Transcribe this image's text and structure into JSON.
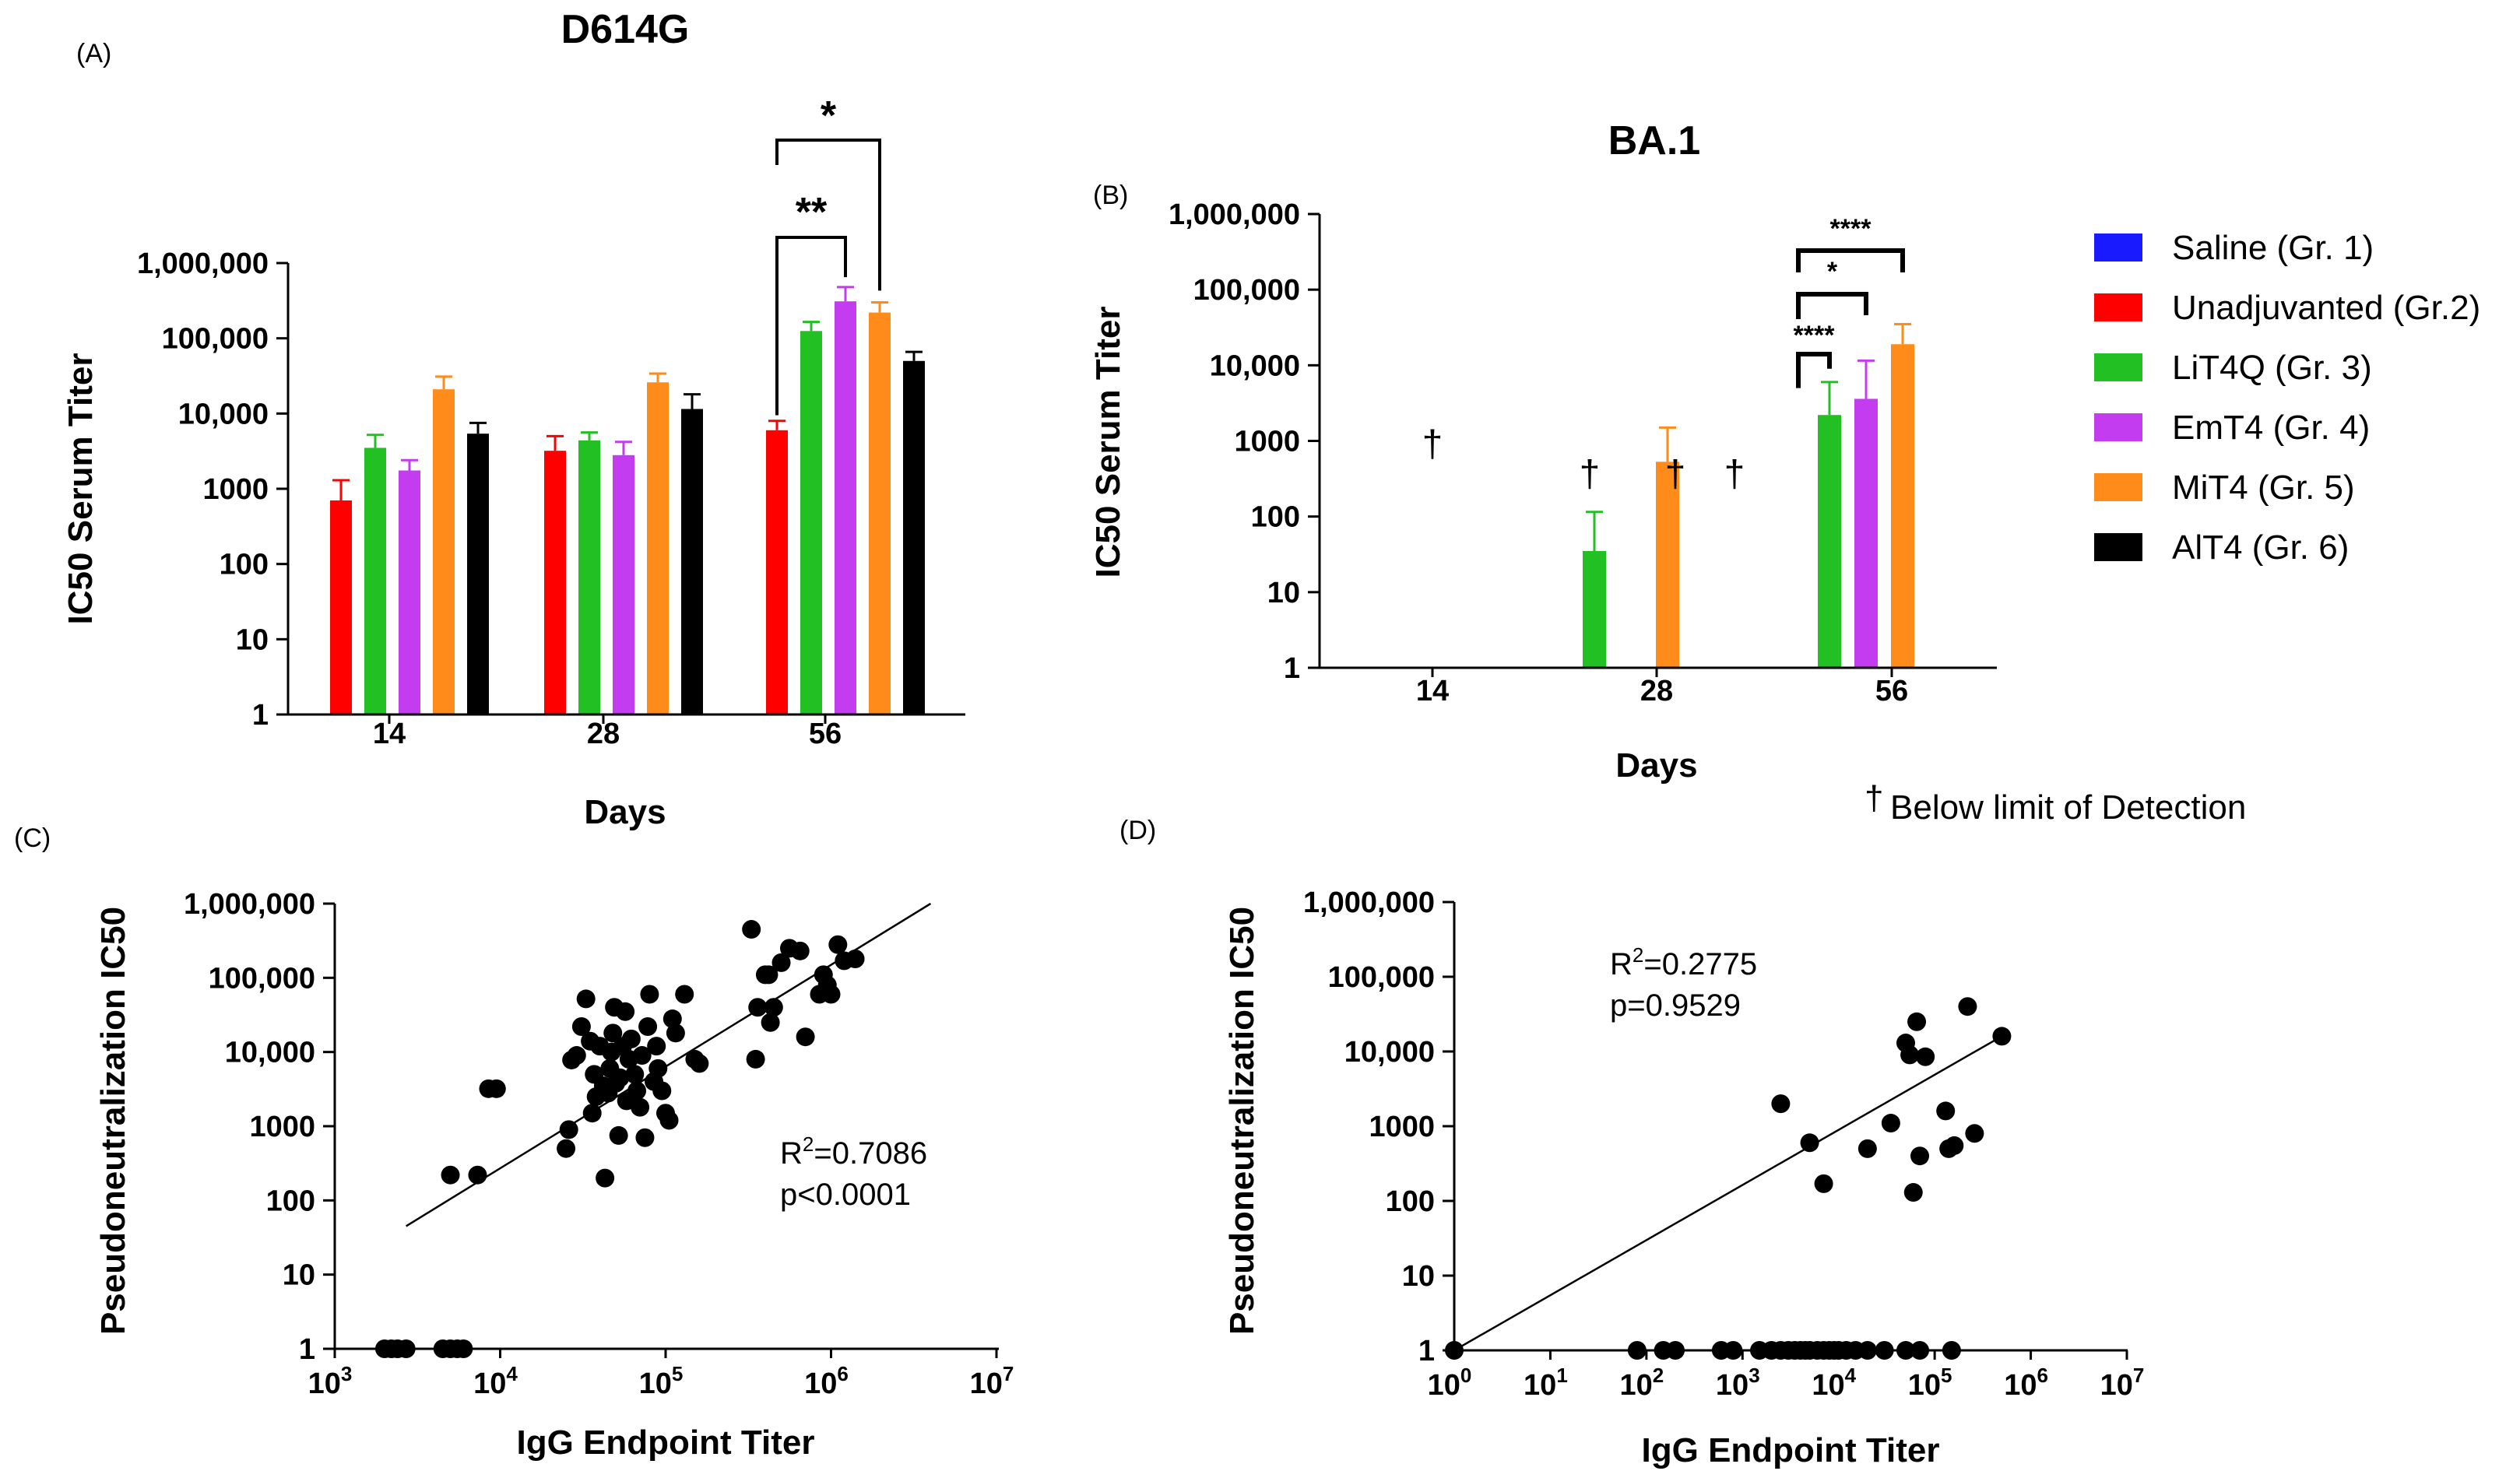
{
  "colors": {
    "saline": "#1a1aff",
    "unadjuvanted": "#ff0000",
    "lit4q": "#22c022",
    "emt4": "#c43cf0",
    "mit4": "#ff8c1a",
    "alt4": "#000000"
  },
  "chart_data": [
    {
      "panel": "(A)",
      "type": "bar",
      "title": "D614G",
      "xlabel": "Days",
      "ylabel": "IC50  Serum  Titer",
      "yscale": "log",
      "ylim": [
        1,
        1000000
      ],
      "ytick_labels": [
        "1",
        "10",
        "100",
        "1000",
        "10,000",
        "100,000",
        "1,000,000"
      ],
      "categories": [
        "14",
        "28",
        "56"
      ],
      "series": [
        {
          "name": "Unadjuvanted (Gr.2)",
          "color_key": "unadjuvanted",
          "values": [
            700,
            3200,
            6000
          ],
          "errors": [
            1300,
            5000,
            8000
          ]
        },
        {
          "name": "LiT4Q (Gr. 3)",
          "color_key": "lit4q",
          "values": [
            3500,
            4400,
            125000
          ],
          "errors": [
            5200,
            5600,
            165000
          ]
        },
        {
          "name": "EmT4 (Gr. 4)",
          "color_key": "emt4",
          "values": [
            1750,
            2800,
            310000
          ],
          "errors": [
            2400,
            4200,
            480000
          ]
        },
        {
          "name": "MiT4 (Gr. 5)",
          "color_key": "mit4",
          "values": [
            21000,
            26000,
            220000
          ],
          "errors": [
            31000,
            34000,
            300000
          ]
        },
        {
          "name": "AlT4 (Gr. 6)",
          "color_key": "alt4",
          "values": [
            5400,
            11500,
            50000
          ],
          "errors": [
            7500,
            18000,
            66000
          ]
        }
      ],
      "significance": [
        {
          "label": "**",
          "day": "56",
          "from": "Unadjuvanted (Gr.2)",
          "to": "EmT4 (Gr. 4)"
        },
        {
          "label": "*",
          "day": "56",
          "from": "Unadjuvanted (Gr.2)",
          "to": "MiT4 (Gr. 5)"
        }
      ]
    },
    {
      "panel": "(B)",
      "type": "bar",
      "title": "BA.1",
      "xlabel": "Days",
      "ylabel": "IC50 Serum  Titer",
      "yscale": "log",
      "ylim": [
        1,
        1000000
      ],
      "ytick_labels": [
        "1",
        "10",
        "100",
        "1000",
        "10,000",
        "100,000",
        "1,000,000"
      ],
      "categories": [
        "14",
        "28",
        "56"
      ],
      "series": [
        {
          "name": "LiT4Q (Gr. 3)",
          "color_key": "lit4q",
          "values": [
            null,
            35,
            2200
          ],
          "errors": [
            null,
            115,
            6000
          ]
        },
        {
          "name": "EmT4 (Gr. 4)",
          "color_key": "emt4",
          "values": [
            null,
            null,
            3600
          ],
          "errors": [
            null,
            null,
            11500
          ]
        },
        {
          "name": "MiT4 (Gr. 5)",
          "color_key": "mit4",
          "values": [
            null,
            530,
            19000
          ],
          "errors": [
            null,
            1500,
            35000
          ]
        }
      ],
      "below_detection_marker": "†",
      "below_detection_marks": [
        {
          "day": "14",
          "offset": 0,
          "level": 1000
        },
        {
          "day": "28",
          "offset": -86,
          "level": 400
        },
        {
          "day": "28",
          "offset": 24,
          "level": 400
        },
        {
          "day": "28",
          "offset": 100,
          "level": 400
        }
      ],
      "significance": [
        {
          "label": "****",
          "day": "56",
          "from": "LiT4Q (Gr. 3)",
          "to": "LiT4Q (Gr. 3)"
        },
        {
          "label": "*",
          "day": "56",
          "from": "LiT4Q (Gr. 3)",
          "to": "EmT4 (Gr. 4)"
        },
        {
          "label": "****",
          "day": "56",
          "from": "LiT4Q (Gr. 3)",
          "to": "MiT4 (Gr. 5)"
        }
      ]
    },
    {
      "panel": "(C)",
      "type": "scatter",
      "xlabel": "IgG Endpoint Titer",
      "ylabel": "Pseudoneutralization IC50",
      "xscale": "log",
      "yscale": "log",
      "xlim": [
        1000,
        10000000
      ],
      "ylim": [
        1,
        1000000
      ],
      "ytick_labels": [
        "1",
        "10",
        "100",
        "1000",
        "10,000",
        "100,000",
        "1,000,000"
      ],
      "xtick_exponents": [
        "3",
        "4",
        "5",
        "6",
        "7"
      ],
      "annotation": {
        "r2": "=0.7086",
        "p": "p<0.0001"
      },
      "fit_line": {
        "x": [
          2700,
          4000000
        ],
        "y": [
          45,
          1000000
        ]
      },
      "points": [
        [
          2000,
          1
        ],
        [
          2200,
          1
        ],
        [
          2400,
          1
        ],
        [
          2700,
          1
        ],
        [
          4500,
          1
        ],
        [
          5000,
          1
        ],
        [
          5500,
          1
        ],
        [
          6000,
          1
        ],
        [
          5000,
          220
        ],
        [
          7300,
          220
        ],
        [
          8500,
          3200
        ],
        [
          9500,
          3200
        ],
        [
          25000,
          500
        ],
        [
          26000,
          900
        ],
        [
          27000,
          7800
        ],
        [
          29000,
          9000
        ],
        [
          31000,
          22000
        ],
        [
          33000,
          52000
        ],
        [
          35000,
          14000
        ],
        [
          36000,
          1500
        ],
        [
          37000,
          5000
        ],
        [
          38000,
          2500
        ],
        [
          40000,
          12000
        ],
        [
          42000,
          3500
        ],
        [
          43000,
          200
        ],
        [
          45000,
          2800
        ],
        [
          46000,
          6000
        ],
        [
          47000,
          10000
        ],
        [
          48000,
          18000
        ],
        [
          49000,
          40000
        ],
        [
          50000,
          3800
        ],
        [
          52000,
          750
        ],
        [
          53000,
          4500
        ],
        [
          55000,
          12000
        ],
        [
          57000,
          35000
        ],
        [
          58000,
          2200
        ],
        [
          60000,
          8000
        ],
        [
          62000,
          15000
        ],
        [
          65000,
          5000
        ],
        [
          67000,
          3000
        ],
        [
          70000,
          1800
        ],
        [
          72000,
          9000
        ],
        [
          75000,
          700
        ],
        [
          78000,
          22000
        ],
        [
          80000,
          60000
        ],
        [
          85000,
          4000
        ],
        [
          88000,
          12000
        ],
        [
          90000,
          6000
        ],
        [
          95000,
          3000
        ],
        [
          100000,
          1500
        ],
        [
          105000,
          1200
        ],
        [
          110000,
          28000
        ],
        [
          115000,
          18000
        ],
        [
          130000,
          60000
        ],
        [
          150000,
          8000
        ],
        [
          160000,
          7000
        ],
        [
          330000,
          450000
        ],
        [
          350000,
          8000
        ],
        [
          360000,
          40000
        ],
        [
          400000,
          110000
        ],
        [
          420000,
          110000
        ],
        [
          430000,
          25000
        ],
        [
          450000,
          40000
        ],
        [
          500000,
          160000
        ],
        [
          560000,
          250000
        ],
        [
          650000,
          230000
        ],
        [
          700000,
          16000
        ],
        [
          850000,
          60000
        ],
        [
          900000,
          110000
        ],
        [
          950000,
          80000
        ],
        [
          1000000,
          60000
        ],
        [
          1100000,
          280000
        ],
        [
          1200000,
          170000
        ],
        [
          1400000,
          180000
        ]
      ]
    },
    {
      "panel": "(D)",
      "type": "scatter",
      "xlabel": "IgG Endpoint  Titer",
      "ylabel": "Pseudoneutralization IC50",
      "xscale": "log",
      "yscale": "log",
      "xlim": [
        1,
        10000000
      ],
      "ylim": [
        1,
        1000000
      ],
      "ytick_labels": [
        "1",
        "10",
        "100",
        "1000",
        "10,000",
        "100,000",
        "1,000,000"
      ],
      "xtick_exponents": [
        "0",
        "1",
        "2",
        "3",
        "4",
        "5",
        "6",
        "7"
      ],
      "annotation": {
        "r2": "=0.2775",
        "p": "p=0.9529"
      },
      "fit_line": {
        "x": [
          1,
          500000
        ],
        "y": [
          1,
          16000
        ]
      },
      "points": [
        [
          1,
          1
        ],
        [
          80,
          1
        ],
        [
          150,
          1
        ],
        [
          200,
          1
        ],
        [
          600,
          1
        ],
        [
          800,
          1
        ],
        [
          1500,
          1
        ],
        [
          2000,
          1
        ],
        [
          2500,
          1
        ],
        [
          3000,
          1
        ],
        [
          3500,
          1
        ],
        [
          4000,
          1
        ],
        [
          4500,
          1
        ],
        [
          5000,
          1
        ],
        [
          6000,
          1
        ],
        [
          7000,
          1
        ],
        [
          8000,
          1
        ],
        [
          9000,
          1
        ],
        [
          10000,
          1
        ],
        [
          12000,
          1
        ],
        [
          15000,
          1
        ],
        [
          20000,
          1
        ],
        [
          30000,
          1
        ],
        [
          50000,
          1
        ],
        [
          70000,
          1
        ],
        [
          150000,
          1
        ],
        [
          2500,
          2000
        ],
        [
          5000,
          600
        ],
        [
          7000,
          170
        ],
        [
          20000,
          500
        ],
        [
          35000,
          1100
        ],
        [
          50000,
          13000
        ],
        [
          55000,
          9000
        ],
        [
          60000,
          130
        ],
        [
          65000,
          25000
        ],
        [
          70000,
          400
        ],
        [
          80000,
          8500
        ],
        [
          130000,
          1600
        ],
        [
          140000,
          500
        ],
        [
          160000,
          550
        ],
        [
          220000,
          40000
        ],
        [
          260000,
          800
        ],
        [
          500000,
          16000
        ]
      ]
    }
  ],
  "legend": {
    "items": [
      {
        "label": "Saline (Gr. 1)",
        "color_key": "saline"
      },
      {
        "label": "Unadjuvanted (Gr.2)",
        "color_key": "unadjuvanted"
      },
      {
        "label": "LiT4Q (Gr. 3)",
        "color_key": "lit4q"
      },
      {
        "label": "EmT4 (Gr. 4)",
        "color_key": "emt4"
      },
      {
        "label": "MiT4 (Gr. 5)",
        "color_key": "mit4"
      },
      {
        "label": "AlT4 (Gr. 6)",
        "color_key": "alt4"
      }
    ],
    "footnote_symbol": "†",
    "footnote_text": "Below limit of Detection"
  },
  "annotation_labels": {
    "r2_prefix": "R",
    "r2_exponent": "2",
    "log_base": "10"
  }
}
